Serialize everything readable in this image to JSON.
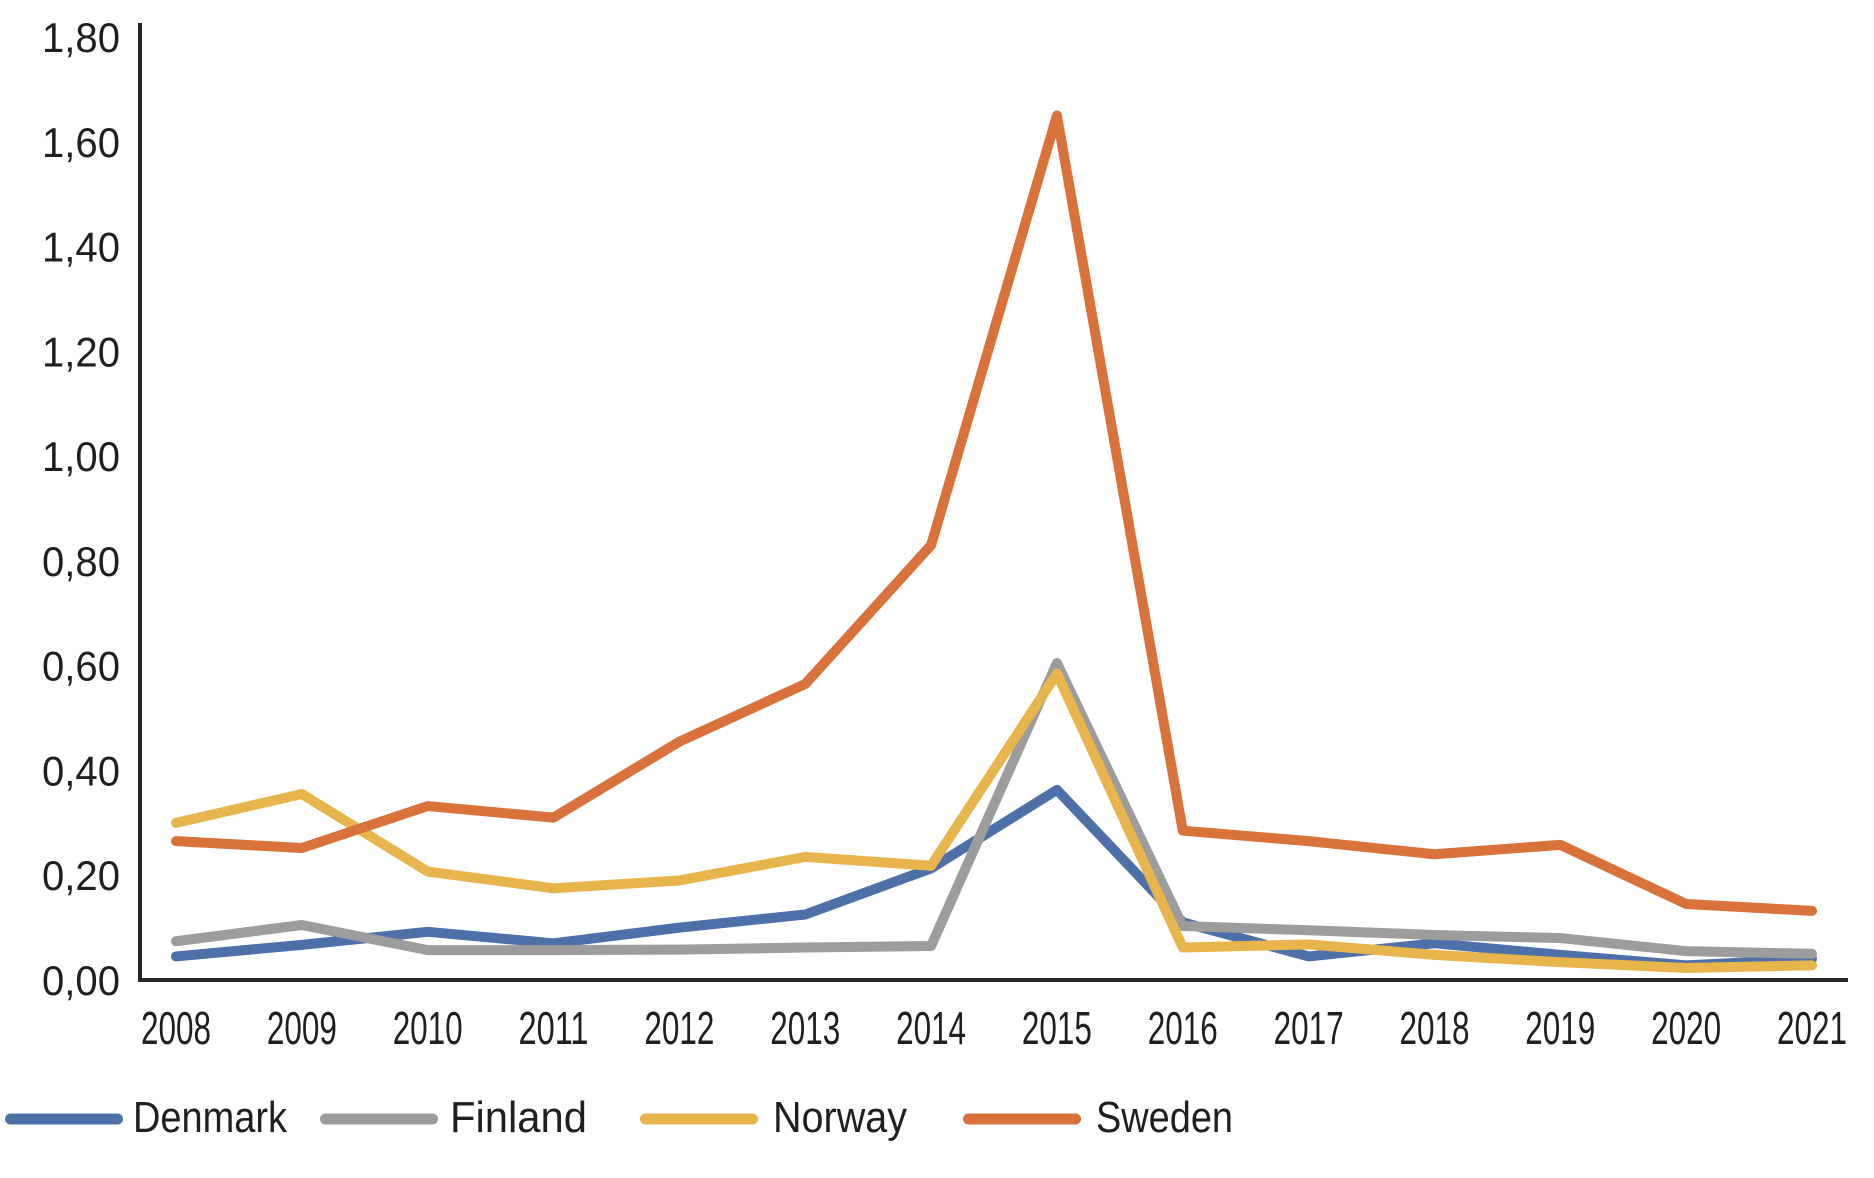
{
  "page": {
    "background": "#ffffff"
  },
  "chart_data": {
    "type": "line",
    "title": "",
    "xlabel": "",
    "ylabel": "",
    "x_categories": [
      "2008",
      "2009",
      "2010",
      "2011",
      "2012",
      "2013",
      "2014",
      "2015",
      "2016",
      "2017",
      "2018",
      "2019",
      "2020",
      "2021"
    ],
    "y_tick_labels": [
      "0,00",
      "0,20",
      "0,40",
      "0,60",
      "0,80",
      "1,00",
      "1,20",
      "1,40",
      "1,60",
      "1,80"
    ],
    "ylim": [
      0,
      1.8
    ],
    "y_tick_step": 0.2,
    "decimal_separator": ",",
    "grid": false,
    "legend_position": "bottom-left",
    "axis_color": "#262626",
    "text_color": "#1f1f1f",
    "series": [
      {
        "name": "Denmark",
        "color": "#4d70a8",
        "values": [
          0.045,
          0.067,
          0.092,
          0.07,
          0.1,
          0.125,
          0.213,
          0.363,
          0.11,
          0.045,
          0.07,
          0.048,
          0.028,
          0.04
        ]
      },
      {
        "name": "Finland",
        "color": "#9c9c9c",
        "values": [
          0.074,
          0.105,
          0.057,
          0.057,
          0.058,
          0.062,
          0.065,
          0.605,
          0.103,
          0.095,
          0.086,
          0.08,
          0.055,
          0.05
        ]
      },
      {
        "name": "Norway",
        "color": "#e8b44c",
        "values": [
          0.3,
          0.355,
          0.207,
          0.175,
          0.19,
          0.235,
          0.218,
          0.585,
          0.062,
          0.068,
          0.048,
          0.034,
          0.023,
          0.028
        ]
      },
      {
        "name": "Sweden",
        "color": "#d8713a",
        "values": [
          0.265,
          0.252,
          0.332,
          0.31,
          0.455,
          0.565,
          0.83,
          1.65,
          0.285,
          0.265,
          0.24,
          0.258,
          0.145,
          0.132
        ]
      }
    ]
  }
}
